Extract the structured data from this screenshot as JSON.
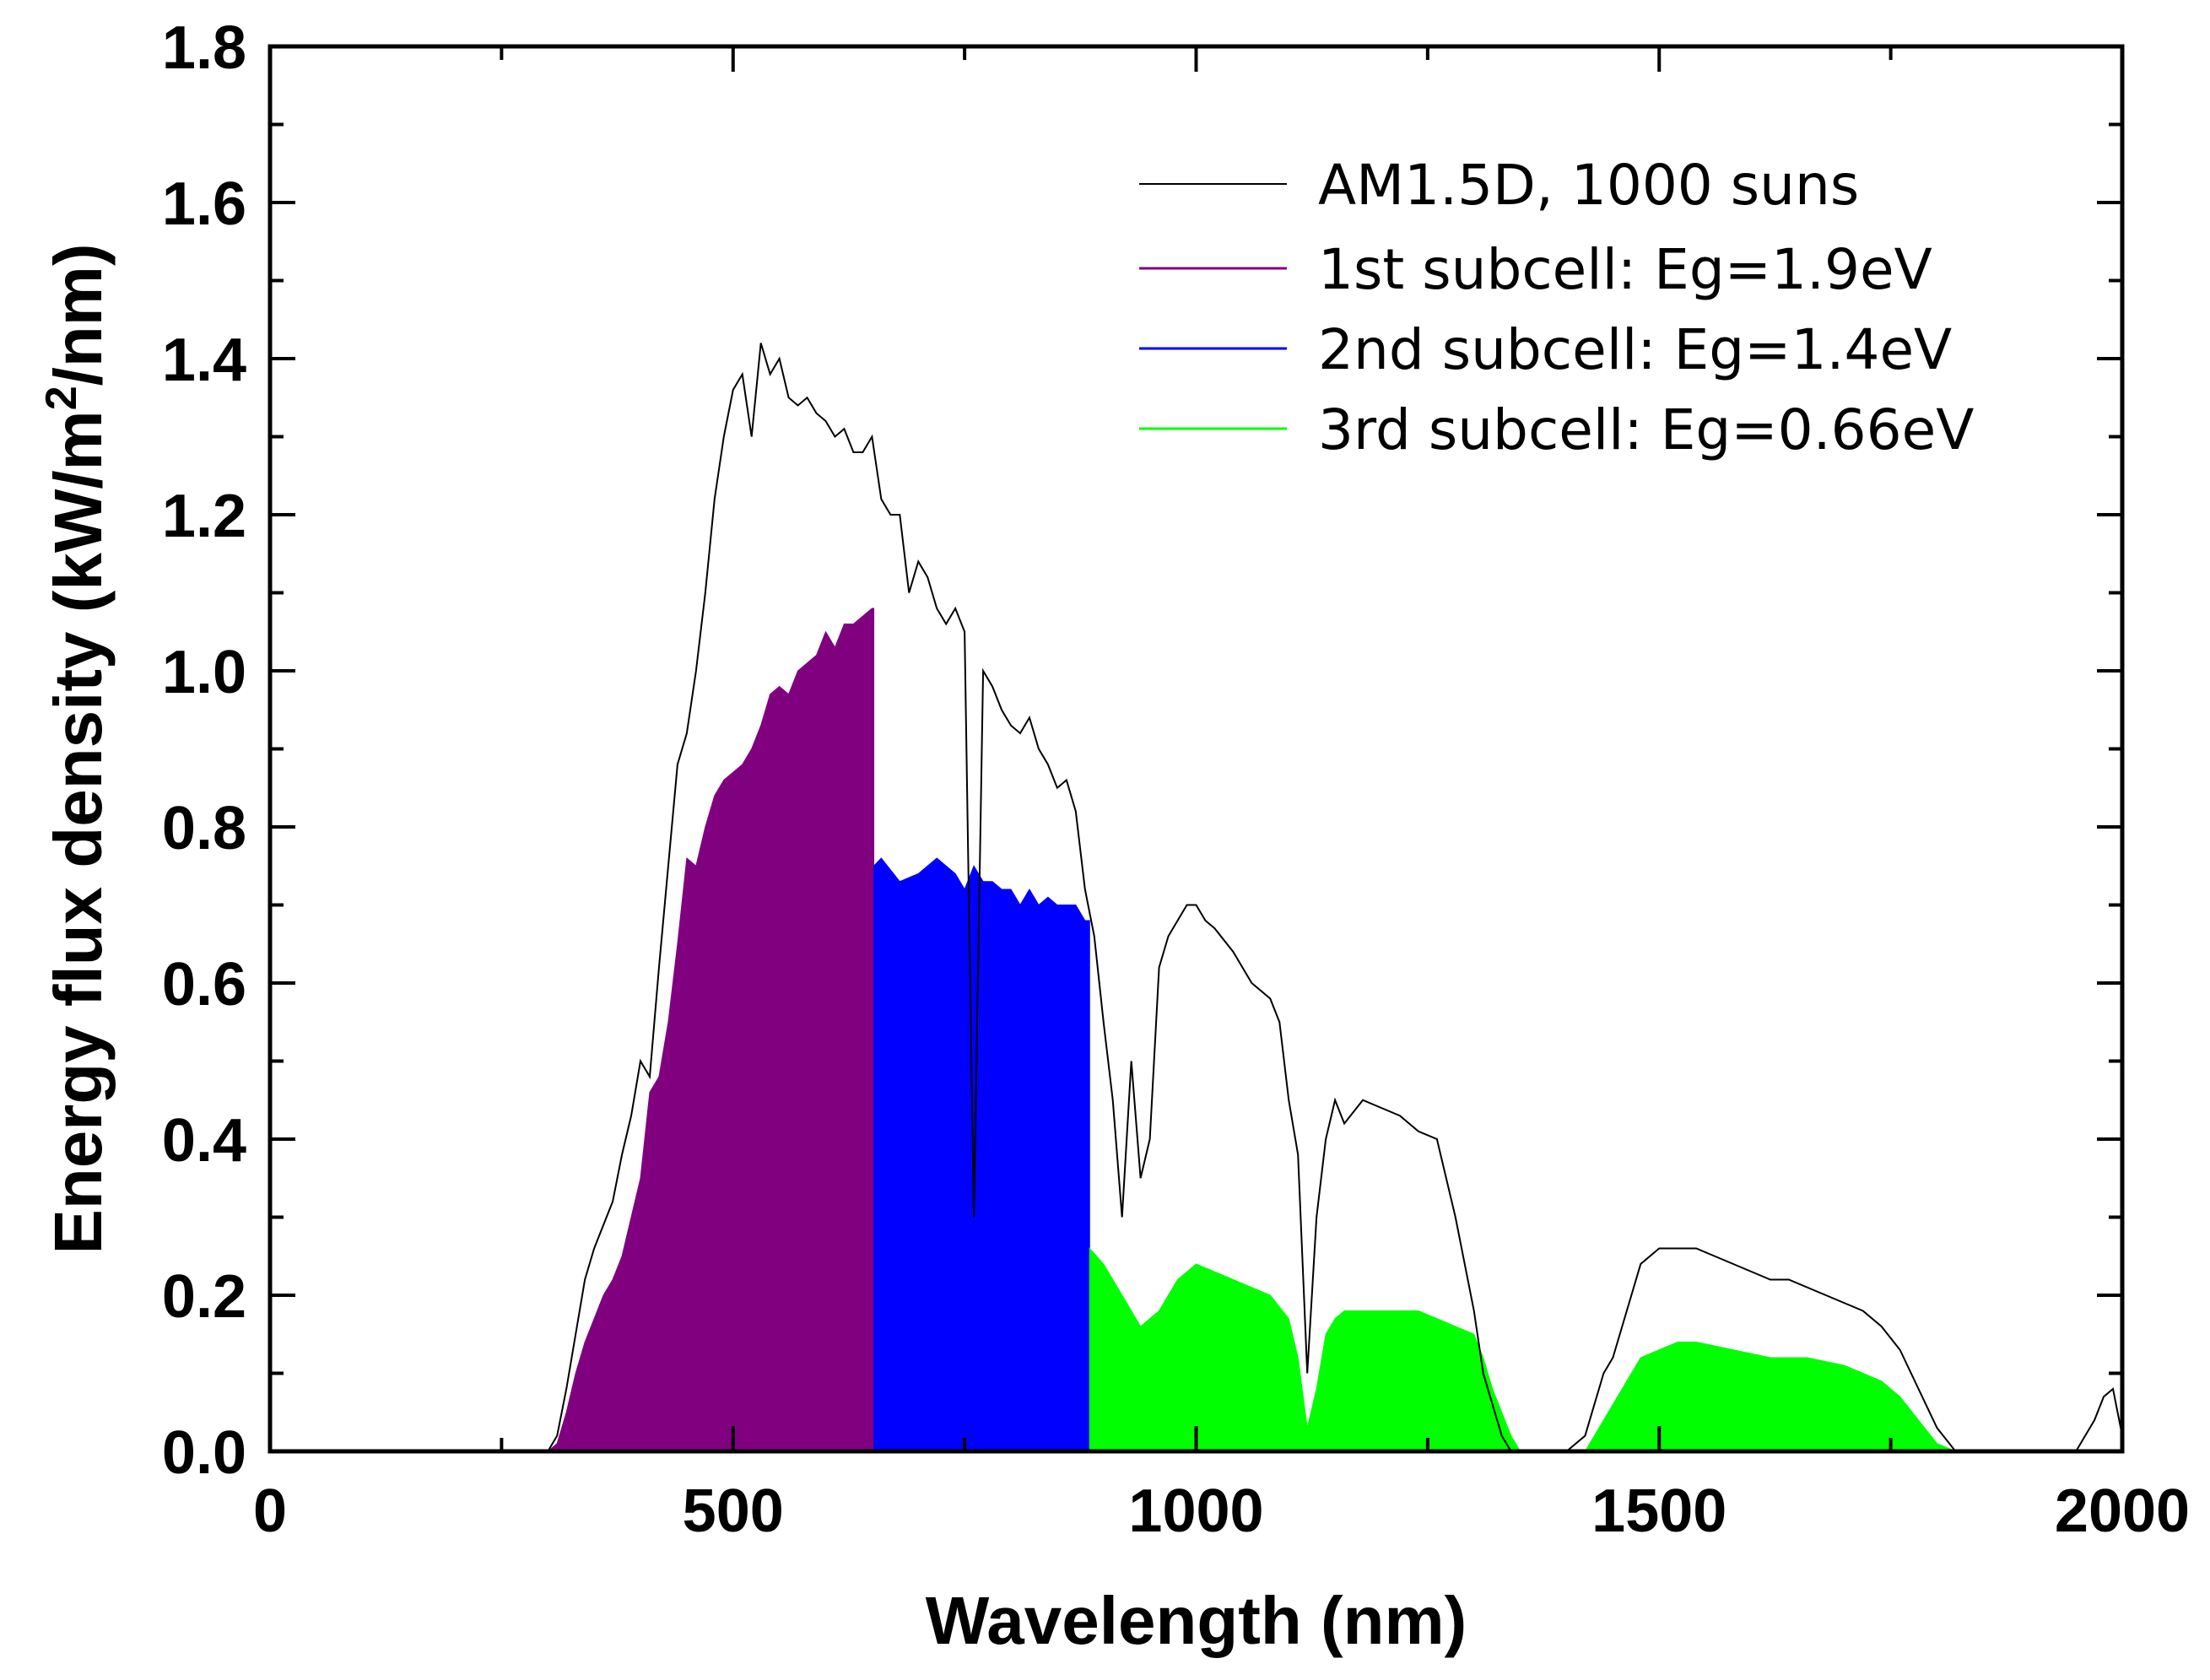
{
  "chart_data": {
    "type": "area",
    "xlabel": "Wavelength (nm)",
    "ylabel_parts": [
      "Energy flux density (kW/m",
      "2",
      "/nm)"
    ],
    "xlim": [
      0,
      2000
    ],
    "ylim": [
      0,
      1.8
    ],
    "x_ticks": [
      0,
      500,
      1000,
      1500,
      2000
    ],
    "x_tick_labels": [
      "0",
      "500",
      "1000",
      "1500",
      "2000"
    ],
    "y_ticks": [
      0.0,
      0.2,
      0.4,
      0.6,
      0.8,
      1.0,
      1.2,
      1.4,
      1.6,
      1.8
    ],
    "y_tick_labels": [
      "0.0",
      "0.2",
      "0.4",
      "0.6",
      "0.8",
      "1.0",
      "1.2",
      "1.4",
      "1.6",
      "1.8"
    ],
    "grid": false,
    "legend_position": "top-right",
    "spectrum": {
      "name": "AM1.5D, 1000 suns",
      "color": "#000000",
      "x": [
        0,
        250,
        290,
        300,
        310,
        320,
        330,
        340,
        350,
        360,
        370,
        380,
        390,
        400,
        410,
        420,
        430,
        440,
        450,
        460,
        470,
        480,
        490,
        500,
        510,
        520,
        530,
        540,
        550,
        560,
        570,
        580,
        590,
        600,
        610,
        620,
        630,
        640,
        650,
        660,
        670,
        680,
        690,
        700,
        710,
        720,
        730,
        740,
        750,
        760,
        770,
        780,
        790,
        800,
        810,
        820,
        830,
        840,
        850,
        860,
        870,
        880,
        890,
        900,
        910,
        920,
        930,
        940,
        950,
        960,
        970,
        980,
        990,
        1000,
        1010,
        1020,
        1040,
        1060,
        1080,
        1090,
        1100,
        1110,
        1120,
        1130,
        1140,
        1150,
        1160,
        1180,
        1200,
        1220,
        1240,
        1260,
        1280,
        1300,
        1310,
        1320,
        1330,
        1340,
        1350,
        1360,
        1380,
        1400,
        1420,
        1430,
        1440,
        1450,
        1460,
        1470,
        1480,
        1500,
        1520,
        1540,
        1560,
        1580,
        1600,
        1620,
        1640,
        1660,
        1680,
        1700,
        1720,
        1740,
        1760,
        1780,
        1800,
        1820,
        1850,
        1900,
        1950,
        1960,
        1970,
        1980,
        1990,
        2000
      ],
      "y": [
        0,
        0,
        0,
        0.0,
        0.02,
        0.08,
        0.15,
        0.22,
        0.26,
        0.29,
        0.32,
        0.38,
        0.43,
        0.5,
        0.48,
        0.62,
        0.75,
        0.88,
        0.92,
        1.0,
        1.1,
        1.22,
        1.3,
        1.36,
        1.38,
        1.3,
        1.42,
        1.38,
        1.4,
        1.35,
        1.34,
        1.35,
        1.33,
        1.32,
        1.3,
        1.31,
        1.28,
        1.28,
        1.3,
        1.22,
        1.2,
        1.2,
        1.1,
        1.14,
        1.12,
        1.08,
        1.06,
        1.08,
        1.05,
        0.3,
        1.0,
        0.98,
        0.95,
        0.93,
        0.92,
        0.94,
        0.9,
        0.88,
        0.85,
        0.86,
        0.82,
        0.72,
        0.66,
        0.55,
        0.45,
        0.3,
        0.5,
        0.35,
        0.4,
        0.62,
        0.66,
        0.68,
        0.7,
        0.7,
        0.68,
        0.67,
        0.64,
        0.6,
        0.58,
        0.55,
        0.45,
        0.38,
        0.1,
        0.3,
        0.4,
        0.45,
        0.42,
        0.45,
        0.44,
        0.43,
        0.41,
        0.4,
        0.3,
        0.18,
        0.1,
        0.06,
        0.02,
        0.0,
        0.0,
        0.0,
        0.0,
        0.0,
        0.02,
        0.06,
        0.1,
        0.12,
        0.16,
        0.2,
        0.24,
        0.26,
        0.26,
        0.26,
        0.25,
        0.24,
        0.23,
        0.22,
        0.22,
        0.21,
        0.2,
        0.19,
        0.18,
        0.16,
        0.13,
        0.08,
        0.03,
        0.0,
        0.0,
        0.0,
        0.0,
        0.02,
        0.04,
        0.07,
        0.08,
        0.02
      ]
    },
    "series": [
      {
        "name": "1st subcell: Eg=1.9eV",
        "color": "#800080",
        "x": [
          300,
          310,
          320,
          330,
          340,
          350,
          360,
          370,
          380,
          390,
          400,
          410,
          420,
          430,
          440,
          450,
          460,
          470,
          480,
          490,
          500,
          510,
          520,
          530,
          540,
          550,
          560,
          570,
          580,
          590,
          600,
          610,
          620,
          630,
          640,
          650,
          652
        ],
        "y": [
          0,
          0.01,
          0.05,
          0.1,
          0.14,
          0.17,
          0.2,
          0.22,
          0.25,
          0.3,
          0.35,
          0.46,
          0.48,
          0.55,
          0.65,
          0.76,
          0.75,
          0.8,
          0.84,
          0.86,
          0.87,
          0.88,
          0.9,
          0.93,
          0.97,
          0.98,
          0.97,
          1.0,
          1.01,
          1.02,
          1.05,
          1.03,
          1.06,
          1.06,
          1.07,
          1.08,
          1.08
        ]
      },
      {
        "name": "2nd subcell: Eg=1.4eV",
        "color": "#0000ff",
        "x": [
          652,
          660,
          680,
          700,
          720,
          740,
          750,
          760,
          770,
          780,
          790,
          800,
          810,
          820,
          830,
          840,
          850,
          860,
          870,
          880,
          885
        ],
        "y": [
          0.75,
          0.76,
          0.73,
          0.74,
          0.76,
          0.74,
          0.72,
          0.75,
          0.73,
          0.73,
          0.72,
          0.72,
          0.7,
          0.72,
          0.7,
          0.71,
          0.7,
          0.7,
          0.7,
          0.68,
          0.68
        ]
      },
      {
        "name": "3rd subcell: Eg=0.66eV",
        "color": "#00ff00",
        "x": [
          885,
          900,
          920,
          940,
          960,
          980,
          1000,
          1020,
          1040,
          1060,
          1080,
          1100,
          1110,
          1120,
          1130,
          1140,
          1150,
          1160,
          1180,
          1200,
          1220,
          1240,
          1260,
          1280,
          1300,
          1310,
          1320,
          1330,
          1340,
          1350,
          1360,
          1400,
          1420,
          1430,
          1440,
          1450,
          1460,
          1470,
          1480,
          1500,
          1520,
          1540,
          1560,
          1580,
          1600,
          1620,
          1640,
          1660,
          1680,
          1700,
          1720,
          1740,
          1760,
          1780,
          1800,
          1820,
          1850
        ],
        "y": [
          0.26,
          0.24,
          0.2,
          0.16,
          0.18,
          0.22,
          0.24,
          0.23,
          0.22,
          0.21,
          0.2,
          0.17,
          0.12,
          0.03,
          0.08,
          0.15,
          0.17,
          0.18,
          0.18,
          0.18,
          0.18,
          0.18,
          0.17,
          0.16,
          0.15,
          0.12,
          0.08,
          0.05,
          0.02,
          0.0,
          0.0,
          0.0,
          0.0,
          0.02,
          0.04,
          0.06,
          0.08,
          0.1,
          0.12,
          0.13,
          0.14,
          0.14,
          0.135,
          0.13,
          0.125,
          0.12,
          0.12,
          0.12,
          0.115,
          0.11,
          0.1,
          0.09,
          0.07,
          0.04,
          0.01,
          0.0,
          0.0
        ]
      }
    ]
  }
}
